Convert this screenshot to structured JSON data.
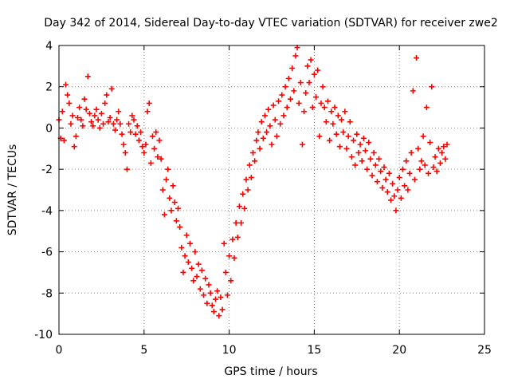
{
  "chart_data": {
    "type": "scatter",
    "title": "Day 342 of 2014, Sidereal Day-to-day VTEC variation (SDTVAR) for receiver zwe2",
    "xlabel": "GPS time / hours",
    "ylabel": "SDTVAR / TECUs",
    "xlim": [
      0,
      25
    ],
    "ylim": [
      -10,
      4
    ],
    "x_ticks": [
      0,
      5,
      10,
      15,
      20,
      25
    ],
    "x_tick_labels": [
      "0",
      "5",
      "10",
      "15",
      "20",
      "25"
    ],
    "y_ticks": [
      -10,
      -8,
      -6,
      -4,
      -2,
      0,
      2,
      4
    ],
    "y_tick_labels": [
      "-10",
      "-8",
      "-6",
      "-4",
      "-2",
      "0",
      "2",
      "4"
    ],
    "grid": true,
    "marker": "+",
    "color": "#ff0000",
    "series": [
      {
        "name": "zwe2",
        "points": [
          [
            0.0,
            0.4
          ],
          [
            0.1,
            -0.5
          ],
          [
            0.2,
            0.8
          ],
          [
            0.3,
            -0.6
          ],
          [
            0.4,
            2.1
          ],
          [
            0.5,
            1.6
          ],
          [
            0.6,
            1.2
          ],
          [
            0.7,
            0.2
          ],
          [
            0.8,
            0.6
          ],
          [
            0.9,
            -0.9
          ],
          [
            1.0,
            -0.4
          ],
          [
            1.1,
            0.5
          ],
          [
            1.2,
            1.0
          ],
          [
            1.3,
            0.4
          ],
          [
            1.4,
            0.1
          ],
          [
            1.5,
            1.4
          ],
          [
            1.6,
            0.9
          ],
          [
            1.7,
            2.5
          ],
          [
            1.8,
            0.7
          ],
          [
            1.9,
            0.3
          ],
          [
            2.0,
            0.1
          ],
          [
            2.1,
            0.6
          ],
          [
            2.2,
            0.9
          ],
          [
            2.3,
            0.4
          ],
          [
            2.4,
            0.0
          ],
          [
            2.5,
            0.7
          ],
          [
            2.6,
            0.2
          ],
          [
            2.7,
            1.2
          ],
          [
            2.8,
            1.6
          ],
          [
            2.9,
            0.3
          ],
          [
            3.0,
            0.5
          ],
          [
            3.1,
            1.9
          ],
          [
            3.2,
            0.2
          ],
          [
            3.3,
            -0.1
          ],
          [
            3.4,
            0.4
          ],
          [
            3.5,
            0.8
          ],
          [
            3.6,
            0.2
          ],
          [
            3.7,
            -0.3
          ],
          [
            3.8,
            -0.8
          ],
          [
            3.9,
            -1.2
          ],
          [
            4.0,
            -2.0
          ],
          [
            4.1,
            0.2
          ],
          [
            4.2,
            -0.2
          ],
          [
            4.3,
            0.6
          ],
          [
            4.4,
            0.4
          ],
          [
            4.5,
            -0.3
          ],
          [
            4.6,
            0.1
          ],
          [
            4.7,
            -0.6
          ],
          [
            4.8,
            -0.2
          ],
          [
            4.9,
            -0.9
          ],
          [
            5.0,
            -1.2
          ],
          [
            5.1,
            -0.8
          ],
          [
            5.2,
            0.8
          ],
          [
            5.3,
            1.2
          ],
          [
            5.4,
            -1.7
          ],
          [
            5.5,
            -0.4
          ],
          [
            5.6,
            -1.0
          ],
          [
            5.7,
            -0.2
          ],
          [
            5.8,
            -1.4
          ],
          [
            5.9,
            -0.6
          ],
          [
            6.0,
            -1.5
          ],
          [
            6.1,
            -3.0
          ],
          [
            6.2,
            -4.2
          ],
          [
            6.3,
            -2.5
          ],
          [
            6.4,
            -2.0
          ],
          [
            6.5,
            -3.4
          ],
          [
            6.6,
            -4.0
          ],
          [
            6.7,
            -2.8
          ],
          [
            6.8,
            -3.6
          ],
          [
            6.9,
            -4.5
          ],
          [
            7.0,
            -3.9
          ],
          [
            7.1,
            -4.8
          ],
          [
            7.2,
            -5.8
          ],
          [
            7.3,
            -7.0
          ],
          [
            7.4,
            -6.2
          ],
          [
            7.5,
            -5.2
          ],
          [
            7.6,
            -6.5
          ],
          [
            7.7,
            -5.6
          ],
          [
            7.8,
            -6.8
          ],
          [
            7.9,
            -7.4
          ],
          [
            8.0,
            -6.0
          ],
          [
            8.1,
            -7.2
          ],
          [
            8.2,
            -6.6
          ],
          [
            8.3,
            -7.8
          ],
          [
            8.4,
            -6.9
          ],
          [
            8.5,
            -8.1
          ],
          [
            8.6,
            -7.3
          ],
          [
            8.7,
            -8.5
          ],
          [
            8.8,
            -7.6
          ],
          [
            8.9,
            -8.0
          ],
          [
            9.0,
            -8.6
          ],
          [
            9.1,
            -8.9
          ],
          [
            9.2,
            -8.3
          ],
          [
            9.3,
            -7.9
          ],
          [
            9.4,
            -9.1
          ],
          [
            9.5,
            -8.2
          ],
          [
            9.6,
            -8.8
          ],
          [
            9.7,
            -5.6
          ],
          [
            9.8,
            -7.0
          ],
          [
            9.9,
            -8.1
          ],
          [
            10.0,
            -6.2
          ],
          [
            10.1,
            -7.4
          ],
          [
            10.2,
            -5.4
          ],
          [
            10.3,
            -6.3
          ],
          [
            10.4,
            -4.6
          ],
          [
            10.5,
            -5.3
          ],
          [
            10.6,
            -3.8
          ],
          [
            10.7,
            -4.6
          ],
          [
            10.8,
            -3.2
          ],
          [
            10.9,
            -3.9
          ],
          [
            11.0,
            -2.5
          ],
          [
            11.1,
            -3.0
          ],
          [
            11.2,
            -1.8
          ],
          [
            11.3,
            -2.4
          ],
          [
            11.4,
            -1.2
          ],
          [
            11.5,
            -1.6
          ],
          [
            11.6,
            -0.6
          ],
          [
            11.7,
            -0.2
          ],
          [
            11.8,
            -1.0
          ],
          [
            11.9,
            0.3
          ],
          [
            12.0,
            -0.5
          ],
          [
            12.1,
            0.6
          ],
          [
            12.2,
            -0.2
          ],
          [
            12.3,
            0.9
          ],
          [
            12.4,
            0.1
          ],
          [
            12.5,
            -0.8
          ],
          [
            12.6,
            1.1
          ],
          [
            12.7,
            0.4
          ],
          [
            12.8,
            -0.4
          ],
          [
            12.9,
            1.3
          ],
          [
            13.0,
            0.2
          ],
          [
            13.1,
            1.6
          ],
          [
            13.2,
            0.6
          ],
          [
            13.3,
            2.0
          ],
          [
            13.4,
            1.0
          ],
          [
            13.5,
            2.4
          ],
          [
            13.6,
            1.4
          ],
          [
            13.7,
            2.9
          ],
          [
            13.8,
            1.8
          ],
          [
            13.9,
            3.5
          ],
          [
            14.0,
            3.9
          ],
          [
            14.1,
            1.2
          ],
          [
            14.2,
            2.2
          ],
          [
            14.3,
            -0.8
          ],
          [
            14.4,
            0.8
          ],
          [
            14.5,
            1.7
          ],
          [
            14.6,
            3.0
          ],
          [
            14.7,
            2.2
          ],
          [
            14.8,
            3.3
          ],
          [
            14.9,
            1.0
          ],
          [
            15.0,
            2.6
          ],
          [
            15.1,
            1.5
          ],
          [
            15.2,
            2.8
          ],
          [
            15.3,
            -0.4
          ],
          [
            15.4,
            1.2
          ],
          [
            15.5,
            2.0
          ],
          [
            15.6,
            1.0
          ],
          [
            15.7,
            0.3
          ],
          [
            15.8,
            1.3
          ],
          [
            15.9,
            -0.6
          ],
          [
            16.0,
            0.8
          ],
          [
            16.1,
            0.2
          ],
          [
            16.2,
            1.0
          ],
          [
            16.3,
            -0.3
          ],
          [
            16.4,
            0.6
          ],
          [
            16.5,
            -0.9
          ],
          [
            16.6,
            0.4
          ],
          [
            16.7,
            -0.2
          ],
          [
            16.8,
            0.8
          ],
          [
            16.9,
            -1.0
          ],
          [
            17.0,
            -0.4
          ],
          [
            17.1,
            0.3
          ],
          [
            17.2,
            -1.4
          ],
          [
            17.3,
            -0.6
          ],
          [
            17.4,
            -1.8
          ],
          [
            17.5,
            -0.3
          ],
          [
            17.6,
            -1.2
          ],
          [
            17.7,
            -0.8
          ],
          [
            17.8,
            -1.6
          ],
          [
            17.9,
            -0.5
          ],
          [
            18.0,
            -1.1
          ],
          [
            18.1,
            -2.0
          ],
          [
            18.2,
            -0.7
          ],
          [
            18.3,
            -1.5
          ],
          [
            18.4,
            -2.3
          ],
          [
            18.5,
            -1.2
          ],
          [
            18.6,
            -1.8
          ],
          [
            18.7,
            -2.6
          ],
          [
            18.8,
            -1.5
          ],
          [
            18.9,
            -2.1
          ],
          [
            19.0,
            -2.9
          ],
          [
            19.1,
            -1.9
          ],
          [
            19.2,
            -2.5
          ],
          [
            19.3,
            -3.1
          ],
          [
            19.4,
            -2.2
          ],
          [
            19.5,
            -3.5
          ],
          [
            19.6,
            -2.7
          ],
          [
            19.7,
            -3.3
          ],
          [
            19.8,
            -4.0
          ],
          [
            19.9,
            -3.0
          ],
          [
            20.0,
            -2.4
          ],
          [
            20.1,
            -3.4
          ],
          [
            20.2,
            -2.0
          ],
          [
            20.3,
            -2.8
          ],
          [
            20.4,
            -1.6
          ],
          [
            20.5,
            -3.0
          ],
          [
            20.6,
            -2.2
          ],
          [
            20.7,
            -1.2
          ],
          [
            20.8,
            1.8
          ],
          [
            20.9,
            -2.5
          ],
          [
            21.0,
            3.4
          ],
          [
            21.1,
            -1.0
          ],
          [
            21.2,
            -2.0
          ],
          [
            21.3,
            -1.6
          ],
          [
            21.4,
            -0.4
          ],
          [
            21.5,
            -1.8
          ],
          [
            21.6,
            1.0
          ],
          [
            21.7,
            -2.2
          ],
          [
            21.8,
            -0.7
          ],
          [
            21.9,
            2.0
          ],
          [
            22.0,
            -1.9
          ],
          [
            22.1,
            -1.4
          ],
          [
            22.2,
            -2.1
          ],
          [
            22.3,
            -1.0
          ],
          [
            22.4,
            -1.7
          ],
          [
            22.5,
            -1.2
          ],
          [
            22.6,
            -0.9
          ],
          [
            22.7,
            -1.5
          ],
          [
            22.8,
            -0.8
          ]
        ]
      }
    ]
  }
}
